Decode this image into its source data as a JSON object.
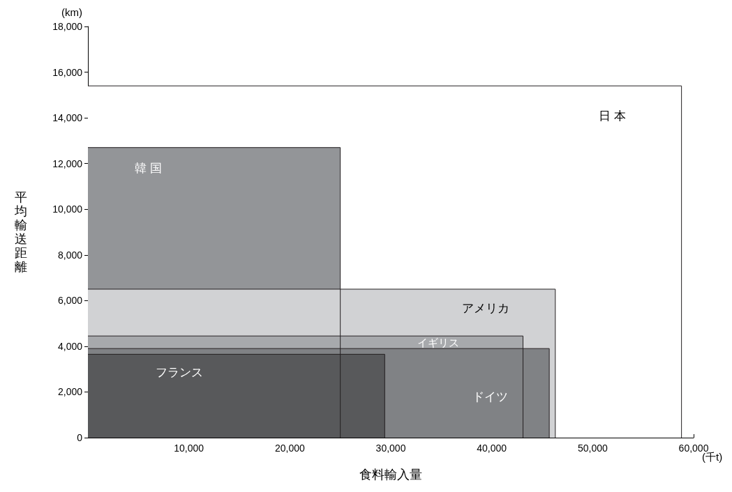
{
  "chart_data": {
    "type": "area",
    "xlabel": "食料輸入量",
    "ylabel": "平均輸送距離",
    "annotations": [
      "(km)",
      "(千t)"
    ],
    "series": [
      {
        "name": "日 本",
        "color": "#ffffff",
        "x": [
          0,
          58800,
          58800
        ],
        "values": [
          15400,
          15400,
          0
        ]
      },
      {
        "name": "韓 国",
        "color": "#939598",
        "x": [
          0,
          25000,
          25000
        ],
        "values": [
          12700,
          12700,
          0
        ]
      },
      {
        "name": "アメリカ",
        "color": "#d1d2d4",
        "x": [
          0,
          46300,
          46300
        ],
        "values": [
          6500,
          6500,
          0
        ]
      },
      {
        "name": "イギリス",
        "color": "#a7a9ac",
        "x": [
          0,
          43100,
          43100
        ],
        "values": [
          4450,
          4450,
          0
        ]
      },
      {
        "name": "ドイツ",
        "color": "#808285",
        "x": [
          0,
          45700,
          45700
        ],
        "values": [
          3900,
          3900,
          0
        ]
      },
      {
        "name": "フランス",
        "color": "#58595b",
        "x": [
          0,
          29400,
          29400
        ],
        "values": [
          3650,
          3650,
          0
        ]
      }
    ],
    "xlim": [
      0,
      60000
    ],
    "xticks": [
      {
        "value": 10000,
        "label": "10,000"
      },
      {
        "value": 20000,
        "label": "20,000"
      },
      {
        "value": 30000,
        "label": "30,000"
      },
      {
        "value": 40000,
        "label": "40,000"
      },
      {
        "value": 50000,
        "label": "50,000"
      },
      {
        "value": 60000,
        "label": "60,000"
      }
    ],
    "ylim": [
      0,
      18000
    ],
    "yticks": [
      0,
      {
        "value": 2000,
        "label": "2,000"
      },
      {
        "value": 4000,
        "label": "4,000"
      },
      {
        "value": 6000,
        "label": "6,000"
      },
      {
        "value": 8000,
        "label": "8,000"
      },
      {
        "value": 10000,
        "label": "10,000"
      },
      {
        "value": 12000,
        "label": "12,000"
      },
      {
        "value": 14000,
        "label": "14,000"
      },
      {
        "value": 16000,
        "label": "16,000"
      },
      {
        "value": 18000,
        "label": "18,000"
      }
    ],
    "grid": false,
    "legend": false
  }
}
